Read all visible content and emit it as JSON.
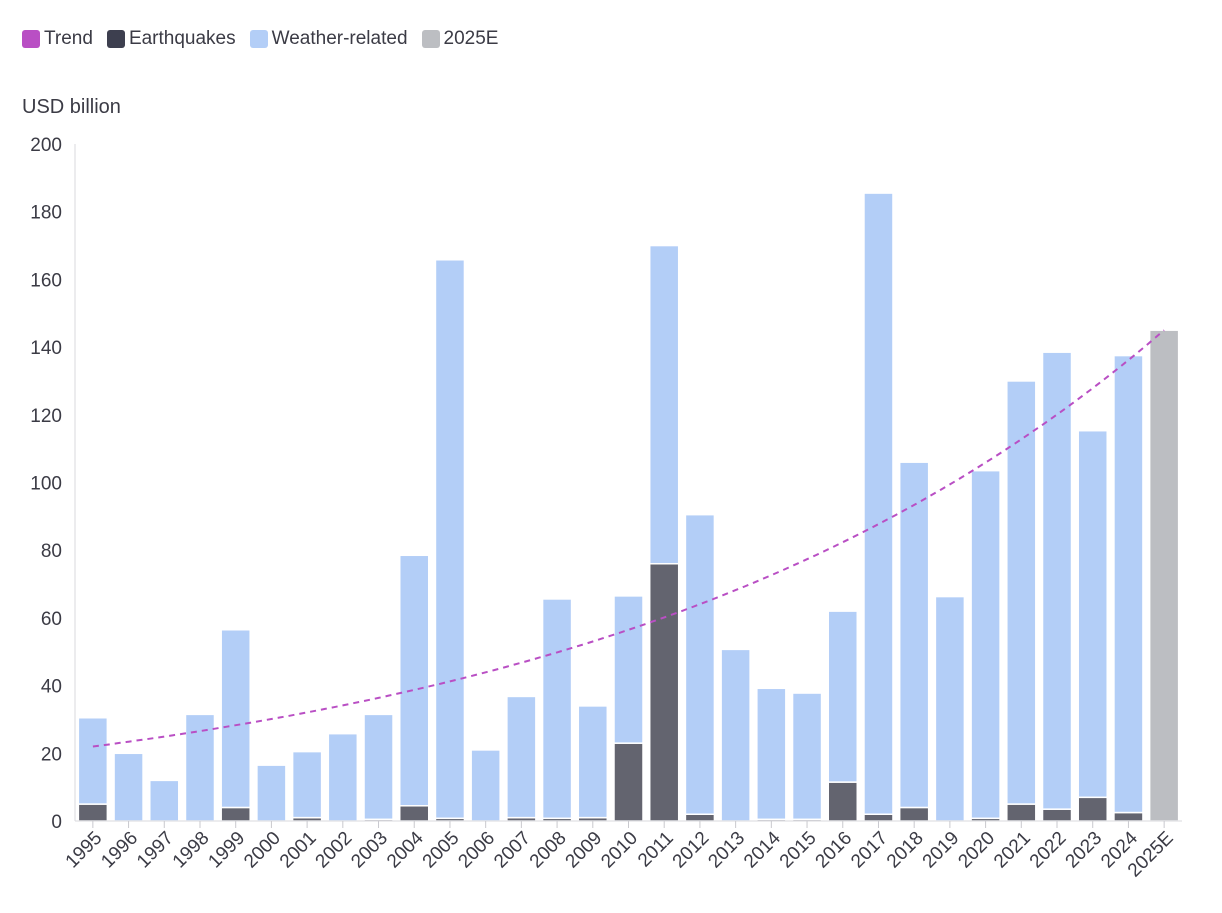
{
  "legend": [
    {
      "label": "Trend",
      "color": "#b94fc4"
    },
    {
      "label": "Earthquakes",
      "color": "#3d3f4f"
    },
    {
      "label": "Weather-related",
      "color": "#b3cef7"
    },
    {
      "label": "2025E",
      "color": "#bcbec2"
    }
  ],
  "chart_data": {
    "type": "bar",
    "stacked": true,
    "ylabel": "USD billion",
    "ylim": [
      0,
      200
    ],
    "yticks": [
      0,
      20,
      40,
      60,
      80,
      100,
      120,
      140,
      160,
      180,
      200
    ],
    "categories": [
      "1995",
      "1996",
      "1997",
      "1998",
      "1999",
      "2000",
      "2001",
      "2002",
      "2003",
      "2004",
      "2005",
      "2006",
      "2007",
      "2008",
      "2009",
      "2010",
      "2011",
      "2012",
      "2013",
      "2014",
      "2015",
      "2016",
      "2017",
      "2018",
      "2019",
      "2020",
      "2021",
      "2022",
      "2023",
      "2024",
      "2025E"
    ],
    "series": [
      {
        "name": "Earthquakes",
        "color": "#63646f",
        "values": [
          5,
          0,
          0,
          0,
          4,
          0,
          1,
          0,
          0.5,
          4.5,
          0.8,
          0,
          1,
          0.8,
          1,
          23,
          76,
          2,
          0,
          0.5,
          0.5,
          11.5,
          2,
          4,
          0,
          0.8,
          5,
          3.5,
          7,
          2.5,
          0
        ]
      },
      {
        "name": "Weather-related",
        "color": "#b3cef7",
        "values": [
          25.5,
          20,
          12,
          31.5,
          52.5,
          16.5,
          19.5,
          25.8,
          31,
          74,
          165,
          21,
          35.8,
          64.8,
          33,
          43.5,
          94,
          88.5,
          50.7,
          38.7,
          37.3,
          50.5,
          183.5,
          102,
          66.3,
          102.7,
          125,
          135,
          108.3,
          135,
          0
        ]
      },
      {
        "name": "2025E",
        "color": "#bcbec2",
        "values": [
          0,
          0,
          0,
          0,
          0,
          0,
          0,
          0,
          0,
          0,
          0,
          0,
          0,
          0,
          0,
          0,
          0,
          0,
          0,
          0,
          0,
          0,
          0,
          0,
          0,
          0,
          0,
          0,
          0,
          0,
          145
        ]
      }
    ],
    "trend": {
      "name": "Trend",
      "color": "#b94fc4",
      "style": "dashed",
      "start": 22,
      "end": 145
    }
  }
}
